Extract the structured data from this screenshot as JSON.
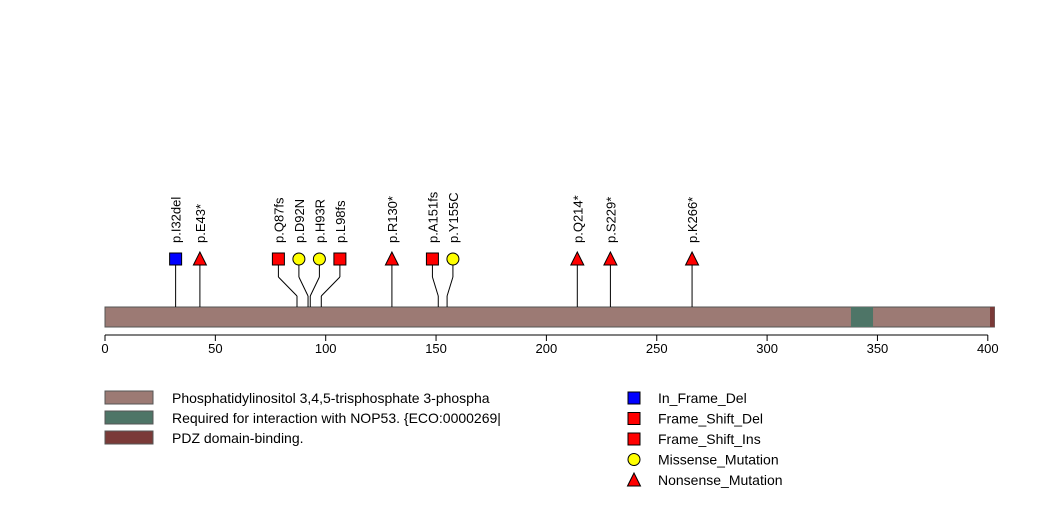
{
  "chart_data": {
    "type": "lollipop",
    "x_range": [
      0,
      403
    ],
    "xticks": [
      0,
      50,
      100,
      150,
      200,
      250,
      300,
      350,
      400
    ],
    "protein_length": 403,
    "domains": [
      {
        "name": "Phosphatidylinositol 3,4,5-trisphosphate 3-phospha",
        "start": 1,
        "end": 403,
        "color": "#9c7a74"
      },
      {
        "name": "Required for interaction with NOP53. {ECO:0000269|",
        "start": 338,
        "end": 348,
        "color": "#4e7567"
      },
      {
        "name": "PDZ domain-binding.",
        "start": 401,
        "end": 403,
        "color": "#7a3a38"
      }
    ],
    "mutations": [
      {
        "label": "p.I32del",
        "pos": 32,
        "type": "In_Frame_Del"
      },
      {
        "label": "p.E43*",
        "pos": 43,
        "type": "Nonsense_Mutation"
      },
      {
        "label": "p.Q87fs",
        "pos": 87,
        "type": "Frame_Shift_Del"
      },
      {
        "label": "p.D92N",
        "pos": 92,
        "type": "Missense_Mutation"
      },
      {
        "label": "p.H93R",
        "pos": 93,
        "type": "Missense_Mutation"
      },
      {
        "label": "p.L98fs",
        "pos": 98,
        "type": "Frame_Shift_Del"
      },
      {
        "label": "p.R130*",
        "pos": 130,
        "type": "Nonsense_Mutation"
      },
      {
        "label": "p.A151fs",
        "pos": 151,
        "type": "Frame_Shift_Ins"
      },
      {
        "label": "p.Y155C",
        "pos": 155,
        "type": "Missense_Mutation"
      },
      {
        "label": "p.Q214*",
        "pos": 214,
        "type": "Nonsense_Mutation"
      },
      {
        "label": "p.S229*",
        "pos": 229,
        "type": "Nonsense_Mutation"
      },
      {
        "label": "p.K266*",
        "pos": 266,
        "type": "Nonsense_Mutation"
      }
    ],
    "legend": [
      {
        "type": "In_Frame_Del",
        "shape": "square",
        "color": "#0000ff"
      },
      {
        "type": "Frame_Shift_Del",
        "shape": "square",
        "color": "#ff0000"
      },
      {
        "type": "Frame_Shift_Ins",
        "shape": "square",
        "color": "#ff0000"
      },
      {
        "type": "Missense_Mutation",
        "shape": "circle",
        "color": "#ffff00"
      },
      {
        "type": "Nonsense_Mutation",
        "shape": "triangle",
        "color": "#ff0000"
      }
    ]
  }
}
